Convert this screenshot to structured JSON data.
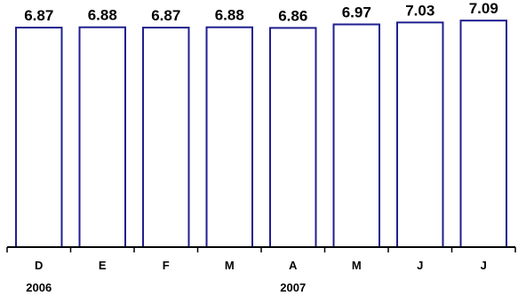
{
  "chart_data": {
    "type": "bar",
    "categories": [
      "D",
      "E",
      "F",
      "M",
      "A",
      "M",
      "J",
      "J"
    ],
    "values": [
      6.87,
      6.88,
      6.87,
      6.88,
      6.86,
      6.97,
      7.03,
      7.09
    ],
    "value_labels": [
      "6.87",
      "6.88",
      "6.87",
      "6.88",
      "6.86",
      "6.97",
      "7.03",
      "7.09"
    ],
    "year_labels": [
      {
        "category_index": 0,
        "text": "2006"
      },
      {
        "category_index": 4,
        "text": "2007"
      }
    ],
    "title": "",
    "xlabel": "",
    "ylabel": "",
    "ylim": [
      0,
      7.4
    ],
    "grid": false,
    "legend": "none",
    "colors": {
      "bar_fill": "#ffffff",
      "bar_stroke": "#1f1f8f",
      "axis": "#000000",
      "text": "#000000"
    }
  }
}
